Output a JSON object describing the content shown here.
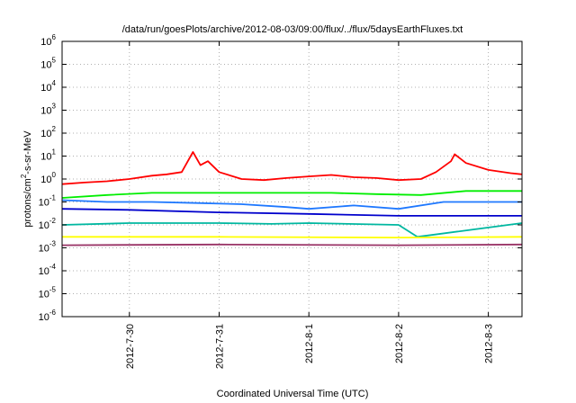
{
  "chart_data": {
    "type": "line",
    "title": "/data/run/goesPlots/archive/2012-08-03/09:00/flux/../flux/5daysEarthFluxes.txt",
    "xlabel": "Coordinated Universal Time (UTC)",
    "ylabel_parts": {
      "pre": "protons/cm",
      "sup": "2",
      "post": "-s-sr-MeV"
    },
    "y_scale": "log",
    "ylim_exponents": [
      -6,
      6
    ],
    "y_tick_exponents": [
      -6,
      -5,
      -4,
      -3,
      -2,
      -1,
      0,
      1,
      2,
      3,
      4,
      5,
      6
    ],
    "y_tick_base": "10",
    "xlim": [
      "2012-07-29T06:00",
      "2012-08-03T09:00"
    ],
    "x_ticks": [
      {
        "label": "2012-7-30",
        "date": "2012-07-30T00:00"
      },
      {
        "label": "2012-7-31",
        "date": "2012-07-31T00:00"
      },
      {
        "label": "2012-8-1",
        "date": "2012-08-01T00:00"
      },
      {
        "label": "2012-8-2",
        "date": "2012-08-02T00:00"
      },
      {
        "label": "2012-8-3",
        "date": "2012-08-03T00:00"
      }
    ],
    "grid": true,
    "series": [
      {
        "color": "#ff0000",
        "points": [
          [
            "2012-07-29T06:00",
            0.6
          ],
          [
            "2012-07-29T12:00",
            0.7
          ],
          [
            "2012-07-29T18:00",
            0.8
          ],
          [
            "2012-07-30T00:00",
            1.0
          ],
          [
            "2012-07-30T06:00",
            1.4
          ],
          [
            "2012-07-30T10:00",
            1.6
          ],
          [
            "2012-07-30T14:00",
            2.0
          ],
          [
            "2012-07-30T17:00",
            15
          ],
          [
            "2012-07-30T19:00",
            4
          ],
          [
            "2012-07-30T21:00",
            6
          ],
          [
            "2012-07-31T00:00",
            2.0
          ],
          [
            "2012-07-31T06:00",
            1.0
          ],
          [
            "2012-07-31T12:00",
            0.9
          ],
          [
            "2012-07-31T18:00",
            1.1
          ],
          [
            "2012-08-01T00:00",
            1.3
          ],
          [
            "2012-08-01T06:00",
            1.5
          ],
          [
            "2012-08-01T12:00",
            1.2
          ],
          [
            "2012-08-01T18:00",
            1.1
          ],
          [
            "2012-08-02T00:00",
            0.9
          ],
          [
            "2012-08-02T06:00",
            1.0
          ],
          [
            "2012-08-02T10:00",
            2.0
          ],
          [
            "2012-08-02T14:00",
            6
          ],
          [
            "2012-08-02T15:00",
            12
          ],
          [
            "2012-08-02T18:00",
            5
          ],
          [
            "2012-08-03T00:00",
            2.5
          ],
          [
            "2012-08-03T06:00",
            1.8
          ],
          [
            "2012-08-03T09:00",
            1.6
          ]
        ]
      },
      {
        "color": "#00ee00",
        "points": [
          [
            "2012-07-29T06:00",
            0.15
          ],
          [
            "2012-07-29T18:00",
            0.2
          ],
          [
            "2012-07-30T06:00",
            0.25
          ],
          [
            "2012-07-30T18:00",
            0.25
          ],
          [
            "2012-07-31T06:00",
            0.25
          ],
          [
            "2012-07-31T18:00",
            0.25
          ],
          [
            "2012-08-01T06:00",
            0.25
          ],
          [
            "2012-08-01T18:00",
            0.22
          ],
          [
            "2012-08-02T06:00",
            0.2
          ],
          [
            "2012-08-02T18:00",
            0.3
          ],
          [
            "2012-08-03T09:00",
            0.3
          ]
        ]
      },
      {
        "color": "#1e78ff",
        "points": [
          [
            "2012-07-29T06:00",
            0.12
          ],
          [
            "2012-07-29T18:00",
            0.1
          ],
          [
            "2012-07-30T06:00",
            0.1
          ],
          [
            "2012-07-30T18:00",
            0.09
          ],
          [
            "2012-07-31T06:00",
            0.08
          ],
          [
            "2012-07-31T18:00",
            0.06
          ],
          [
            "2012-08-01T00:00",
            0.05
          ],
          [
            "2012-08-01T12:00",
            0.07
          ],
          [
            "2012-08-02T00:00",
            0.05
          ],
          [
            "2012-08-02T12:00",
            0.1
          ],
          [
            "2012-08-03T09:00",
            0.1
          ]
        ]
      },
      {
        "color": "#0000cc",
        "points": [
          [
            "2012-07-29T06:00",
            0.05
          ],
          [
            "2012-07-30T00:00",
            0.045
          ],
          [
            "2012-07-31T00:00",
            0.035
          ],
          [
            "2012-08-01T00:00",
            0.03
          ],
          [
            "2012-08-02T00:00",
            0.025
          ],
          [
            "2012-08-03T09:00",
            0.025
          ]
        ]
      },
      {
        "color": "#00b7a0",
        "points": [
          [
            "2012-07-29T06:00",
            0.01
          ],
          [
            "2012-07-30T00:00",
            0.012
          ],
          [
            "2012-07-31T00:00",
            0.012
          ],
          [
            "2012-07-31T14:00",
            0.011
          ],
          [
            "2012-08-01T00:00",
            0.012
          ],
          [
            "2012-08-02T00:00",
            0.01
          ],
          [
            "2012-08-02T05:00",
            0.003
          ],
          [
            "2012-08-03T09:00",
            0.012
          ]
        ]
      },
      {
        "color": "#ffff00",
        "points": [
          [
            "2012-07-29T06:00",
            0.003
          ],
          [
            "2012-07-31T00:00",
            0.003
          ],
          [
            "2012-08-02T00:00",
            0.0028
          ],
          [
            "2012-08-03T09:00",
            0.003
          ]
        ]
      },
      {
        "color": "#993366",
        "points": [
          [
            "2012-07-29T06:00",
            0.0013
          ],
          [
            "2012-07-31T00:00",
            0.0014
          ],
          [
            "2012-08-02T00:00",
            0.0013
          ],
          [
            "2012-08-03T09:00",
            0.0014
          ]
        ]
      }
    ]
  }
}
